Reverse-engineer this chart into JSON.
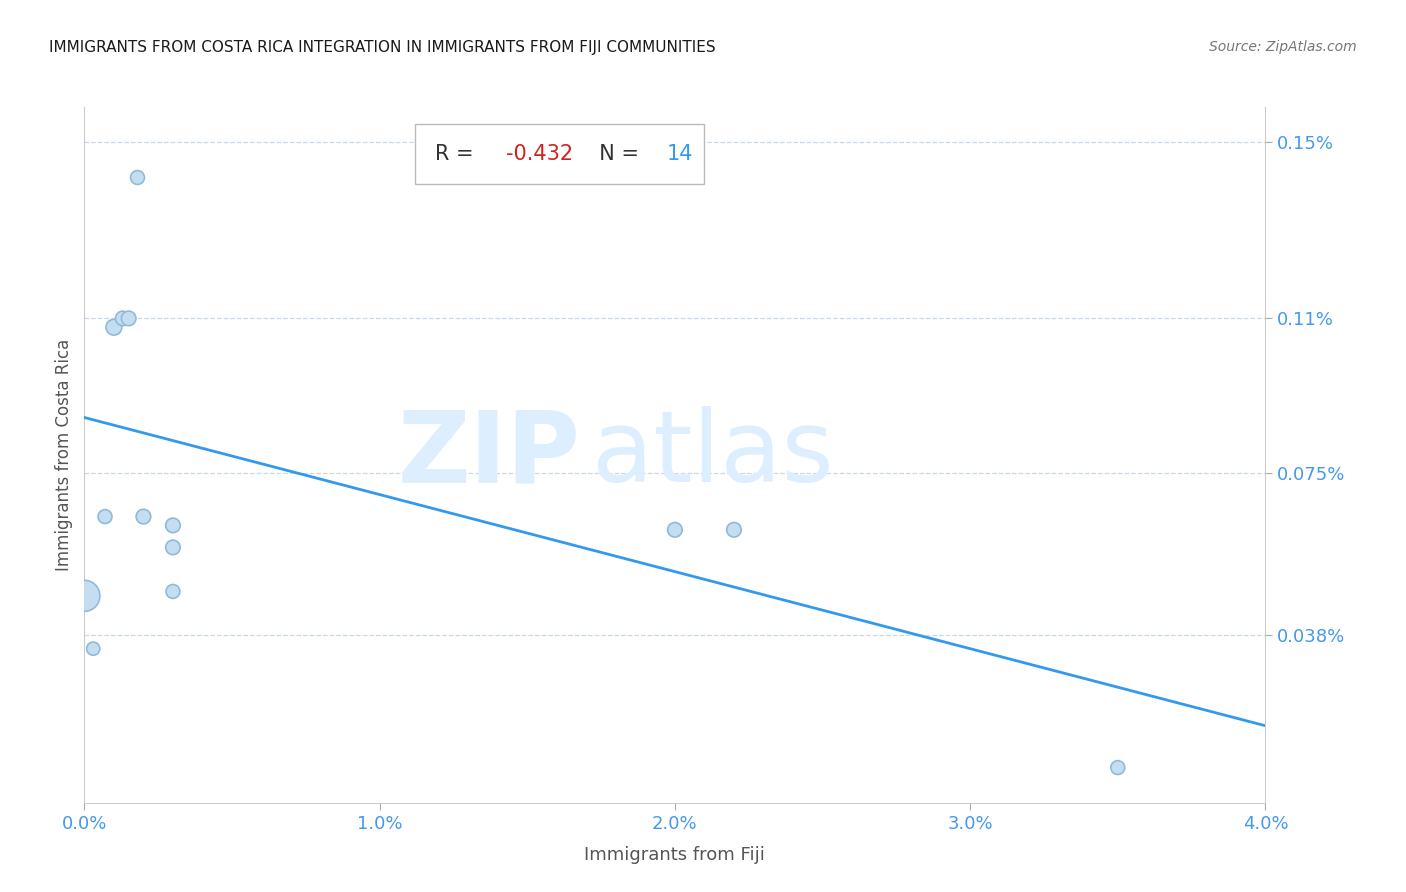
{
  "title": "IMMIGRANTS FROM COSTA RICA INTEGRATION IN IMMIGRANTS FROM FIJI COMMUNITIES",
  "source": "Source: ZipAtlas.com",
  "xlabel": "Immigrants from Fiji",
  "ylabel": "Immigrants from Costa Rica",
  "watermark_zip": "ZIP",
  "watermark_atlas": "atlas",
  "R_val": "-0.432",
  "N_val": "14",
  "xlim": [
    0.0,
    0.04
  ],
  "ylim": [
    0.0,
    0.00158
  ],
  "xtick_labels": [
    "0.0%",
    "1.0%",
    "2.0%",
    "3.0%",
    "4.0%"
  ],
  "xtick_vals": [
    0.0,
    0.01,
    0.02,
    0.03,
    0.04
  ],
  "ytick_labels": [
    "0.15%",
    "0.11%",
    "0.075%",
    "0.038%"
  ],
  "ytick_vals": [
    0.0015,
    0.0011,
    0.00075,
    0.00038
  ],
  "scatter_x": [
    0.0,
    0.0003,
    0.0007,
    0.001,
    0.0013,
    0.0015,
    0.0018,
    0.003,
    0.003,
    0.003,
    0.02,
    0.022,
    0.035,
    0.002
  ],
  "scatter_y": [
    0.00047,
    0.00035,
    0.00065,
    0.00108,
    0.0011,
    0.0011,
    0.00142,
    0.00063,
    0.00058,
    0.00048,
    0.00062,
    0.00062,
    8e-05,
    0.00065
  ],
  "scatter_sizes": [
    500,
    90,
    100,
    130,
    110,
    110,
    100,
    110,
    110,
    100,
    110,
    110,
    100,
    110
  ],
  "scatter_color": "#c5ddf0",
  "scatter_edge_color": "#90bbd8",
  "regression_color": "#3399ee",
  "grid_color": "#c8d8e8",
  "title_color": "#1a1a1a",
  "source_color": "#777777",
  "axis_label_color": "#555555",
  "tick_label_color": "#4499ee",
  "annotation_R_color": "#cc2222",
  "annotation_N_color": "#3399ee",
  "annotation_text_color": "#333333",
  "background_color": "#ffffff",
  "watermark_color": "#ddeeff",
  "regression_line_x": [
    0.0,
    0.04
  ],
  "regression_line_y": [
    0.000875,
    0.000175
  ],
  "figsize": [
    14.06,
    8.92
  ],
  "dpi": 100
}
